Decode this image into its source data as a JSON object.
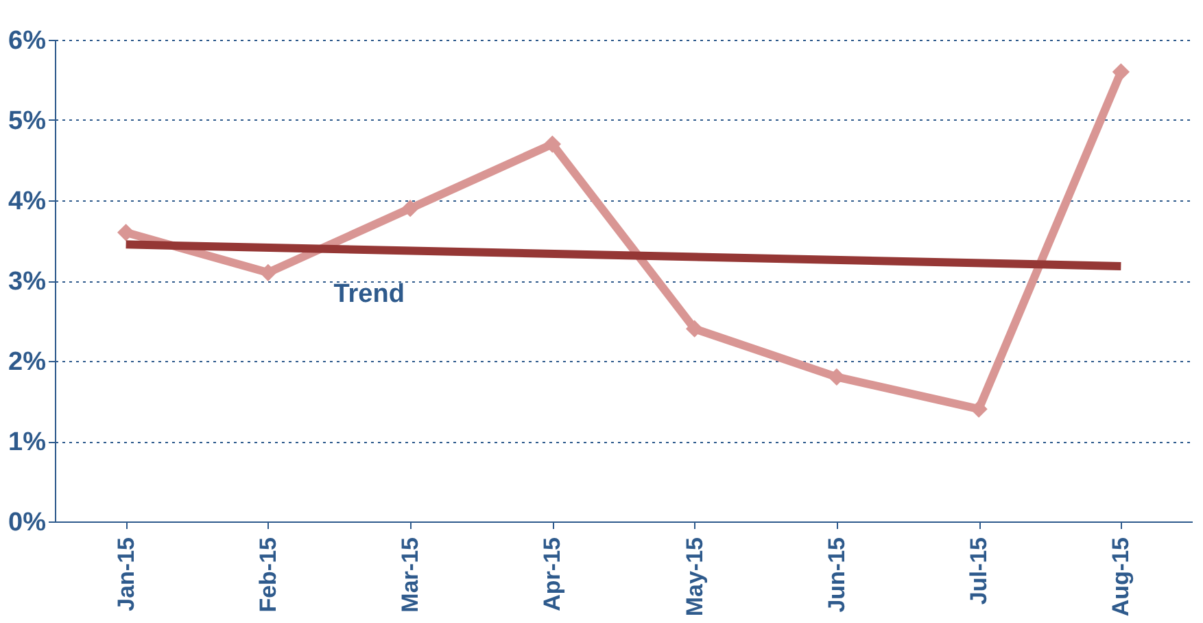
{
  "chart_data": {
    "type": "line",
    "categories": [
      "Jan-15",
      "Feb-15",
      "Mar-15",
      "Apr-15",
      "May-15",
      "Jun-15",
      "Jul-15",
      "Aug-15"
    ],
    "series": [
      {
        "color": "#d99694",
        "values": [
          3.6,
          3.1,
          3.9,
          4.7,
          2.4,
          1.8,
          1.4,
          5.6
        ],
        "marker": "diamond"
      },
      {
        "name": "Trend",
        "type": "line",
        "color": "#953735",
        "x": [
          "Jan-15",
          "Aug-15"
        ],
        "values": [
          3.45,
          3.18
        ],
        "marker": "none"
      }
    ],
    "ylim": [
      0,
      6
    ],
    "yticks": [
      {
        "value": 0,
        "label": "0%"
      },
      {
        "value": 1,
        "label": "1%"
      },
      {
        "value": 2,
        "label": "2%"
      },
      {
        "value": 3,
        "label": "3%"
      },
      {
        "value": 4,
        "label": "4%"
      },
      {
        "value": 5,
        "label": "5%"
      },
      {
        "value": 6,
        "label": "6%"
      }
    ],
    "grid": "y",
    "line_style": "solid"
  }
}
